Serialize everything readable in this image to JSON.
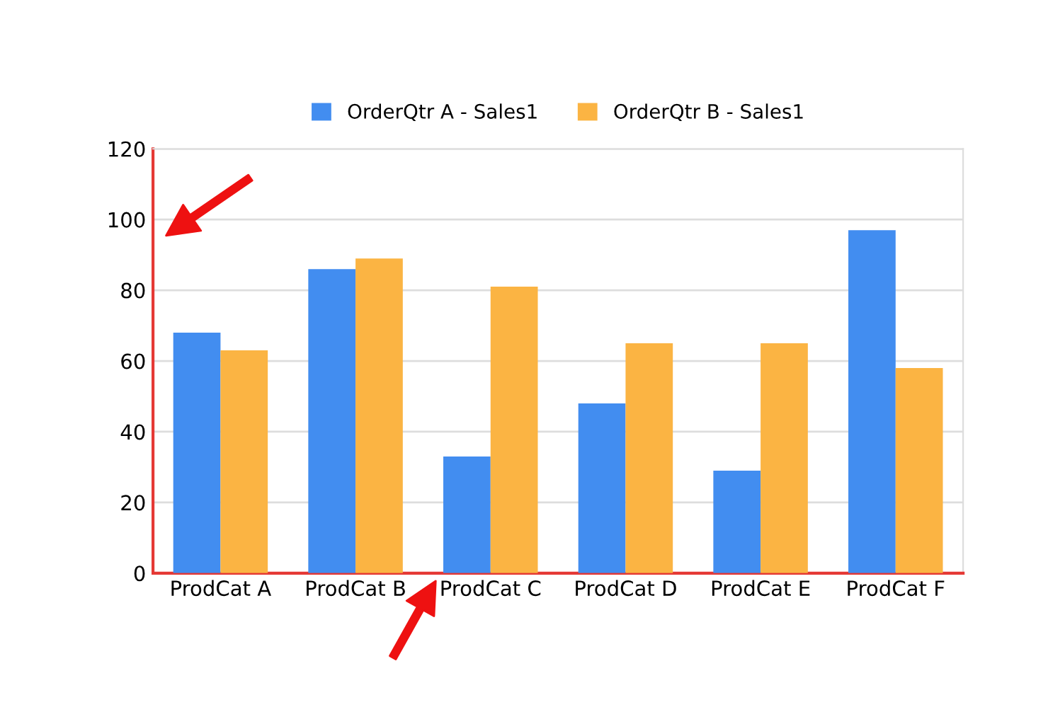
{
  "chart_data": {
    "type": "bar",
    "categories": [
      "ProdCat A",
      "ProdCat B",
      "ProdCat C",
      "ProdCat D",
      "ProdCat E",
      "ProdCat F"
    ],
    "series": [
      {
        "name": "OrderQtr A - Sales1",
        "color": "#428df0",
        "values": [
          68,
          86,
          33,
          48,
          29,
          97
        ]
      },
      {
        "name": "OrderQtr B - Sales1",
        "color": "#fbb443",
        "values": [
          63,
          89,
          81,
          65,
          65,
          58
        ]
      }
    ],
    "ylim": [
      0,
      120
    ],
    "yticks": [
      0,
      20,
      40,
      60,
      80,
      100,
      120
    ],
    "grid": "y",
    "legend": "top"
  }
}
